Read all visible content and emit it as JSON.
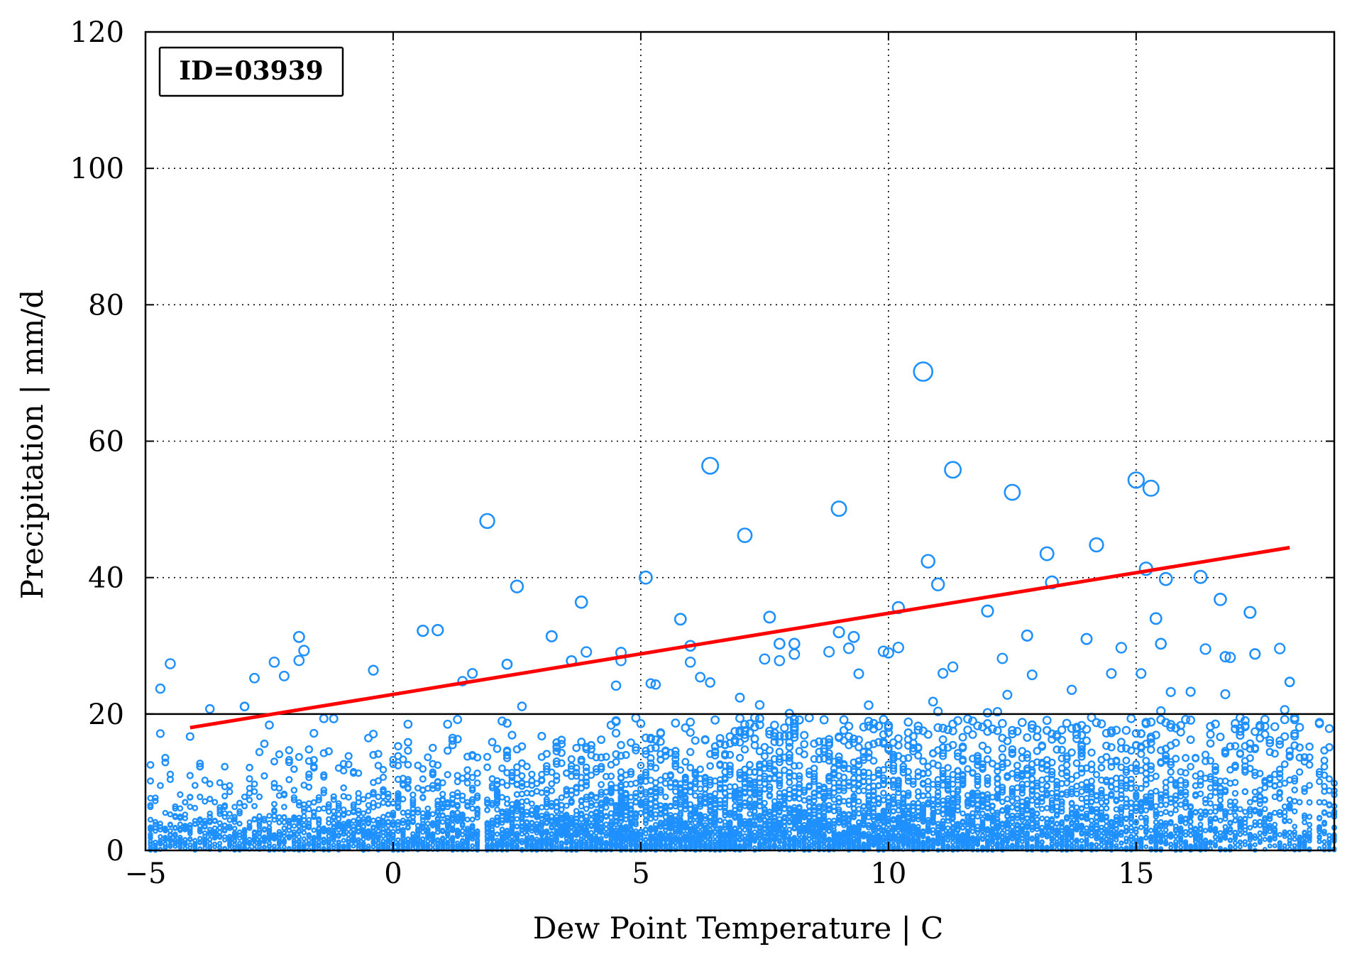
{
  "chart_data": {
    "type": "scatter",
    "id_label": "ID=03939",
    "xlabel": "Dew Point Temperature | C",
    "ylabel": "Precipitation | mm/d",
    "xlim": [
      -5,
      19
    ],
    "ylim": [
      0,
      120
    ],
    "xticks": [
      -5,
      0,
      5,
      10,
      15
    ],
    "xtick_labels": [
      "−5",
      "0",
      "5",
      "10",
      "15"
    ],
    "yticks": [
      0,
      20,
      40,
      60,
      80,
      100,
      120
    ],
    "ytick_labels": [
      "0",
      "20",
      "40",
      "60",
      "80",
      "100",
      "120"
    ],
    "grid": true,
    "threshold_line": {
      "y": 20,
      "color": "#000000"
    },
    "trend_line": {
      "x": [
        -4.1,
        18.1
      ],
      "y": [
        18.0,
        44.4
      ],
      "color": "#ff0000"
    },
    "point_color": "#1e90ff",
    "notable_points": [
      {
        "x": 10.7,
        "y": 70.2
      },
      {
        "x": 6.4,
        "y": 56.4
      },
      {
        "x": 11.3,
        "y": 55.8
      },
      {
        "x": 15.0,
        "y": 54.3
      },
      {
        "x": 15.3,
        "y": 53.1
      },
      {
        "x": 12.5,
        "y": 52.5
      },
      {
        "x": 9.0,
        "y": 50.1
      },
      {
        "x": 1.9,
        "y": 48.3
      },
      {
        "x": 7.1,
        "y": 46.2
      },
      {
        "x": 14.2,
        "y": 44.8
      },
      {
        "x": 13.2,
        "y": 43.5
      },
      {
        "x": 10.8,
        "y": 42.4
      },
      {
        "x": 15.2,
        "y": 41.3
      },
      {
        "x": 5.1,
        "y": 40.0
      },
      {
        "x": 16.3,
        "y": 40.1
      },
      {
        "x": 15.6,
        "y": 39.8
      },
      {
        "x": 13.3,
        "y": 39.3
      },
      {
        "x": 11.0,
        "y": 39.0
      },
      {
        "x": 2.5,
        "y": 38.7
      },
      {
        "x": 16.7,
        "y": 36.8
      },
      {
        "x": 3.8,
        "y": 36.4
      },
      {
        "x": 17.3,
        "y": 34.9
      },
      {
        "x": 7.6,
        "y": 34.2
      },
      {
        "x": 5.8,
        "y": 33.9
      },
      {
        "x": 15.4,
        "y": 34.0
      },
      {
        "x": 12.0,
        "y": 35.1
      },
      {
        "x": 10.2,
        "y": 35.6
      },
      {
        "x": -1.9,
        "y": 31.3
      },
      {
        "x": 0.6,
        "y": 32.2
      },
      {
        "x": 0.9,
        "y": 32.3
      },
      {
        "x": 3.2,
        "y": 31.4
      },
      {
        "x": 9.0,
        "y": 32.0
      },
      {
        "x": 9.3,
        "y": 31.3
      },
      {
        "x": 6.0,
        "y": 30.0
      },
      {
        "x": 7.8,
        "y": 30.3
      },
      {
        "x": 8.1,
        "y": 30.3
      },
      {
        "x": 12.8,
        "y": 31.5
      },
      {
        "x": 14.0,
        "y": 31.0
      },
      {
        "x": 15.5,
        "y": 30.3
      },
      {
        "x": 16.8,
        "y": 28.4
      },
      {
        "x": 17.4,
        "y": 28.8
      },
      {
        "x": 2.3,
        "y": 27.3
      },
      {
        "x": 3.6,
        "y": 27.8
      },
      {
        "x": 18.1,
        "y": 24.7
      },
      {
        "x": -3.0,
        "y": 21.1
      }
    ],
    "dense_cloud": {
      "description_x_range": [
        -5,
        19
      ],
      "typical_y_range": [
        0,
        20
      ]
    }
  }
}
